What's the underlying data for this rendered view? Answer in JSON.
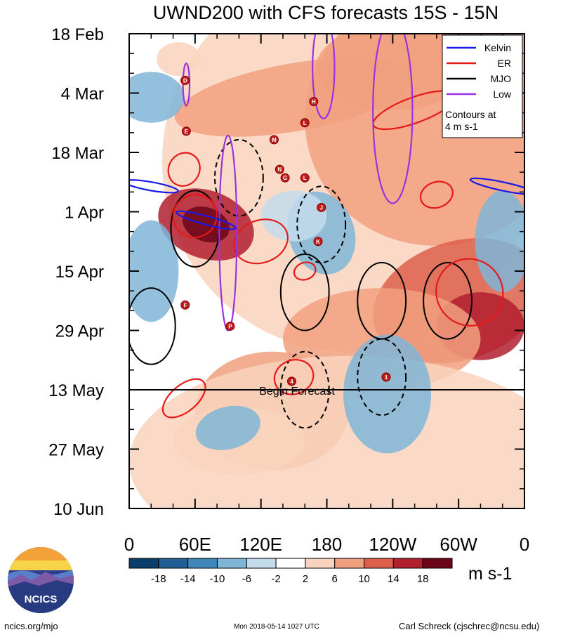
{
  "chart_data": {
    "type": "heatmap",
    "title": "UWND200 with CFS forecasts  15S - 15N",
    "x_ticks": [
      "0",
      "60E",
      "120E",
      "180",
      "120W",
      "60W",
      "0"
    ],
    "x_range_deg_east": [
      0,
      360
    ],
    "y_ticks": [
      "18 Feb",
      "4 Mar",
      "18 Mar",
      "1 Apr",
      "15 Apr",
      "29 Apr",
      "13 May",
      "27 May",
      "10 Jun"
    ],
    "y_range": [
      "2018-02-18",
      "2018-06-10"
    ],
    "forecast_start": "2018-05-13",
    "forecast_label": "Begin Forecast",
    "colorbar": {
      "levels": [
        "-18",
        "-14",
        "-10",
        "-6",
        "-2",
        "2",
        "6",
        "10",
        "14",
        "18"
      ],
      "colors": [
        "#0b3e6b",
        "#1f5f95",
        "#3f86bb",
        "#7fb5d7",
        "#c3dcec",
        "#ffffff",
        "#f9d3bd",
        "#f1a07f",
        "#dc5f4a",
        "#b21f2f",
        "#6b0619"
      ],
      "units": "m s-1"
    },
    "legend": {
      "items": [
        {
          "label": "Kelvin",
          "color": "#1a1ae6"
        },
        {
          "label": "ER",
          "color": "#e61919"
        },
        {
          "label": "MJO",
          "color": "#000000"
        },
        {
          "label": "Low",
          "color": "#9933e0"
        }
      ],
      "note": [
        "Contours at",
        "4 m s-1"
      ],
      "position": "top-right"
    },
    "storm_markers": [
      {
        "label": "D",
        "lon": 51,
        "date": "2018-03-01"
      },
      {
        "label": "E",
        "lon": 52,
        "date": "2018-03-13"
      },
      {
        "label": "H",
        "lon": 168,
        "date": "2018-03-06"
      },
      {
        "label": "M",
        "lon": 132,
        "date": "2018-03-15"
      },
      {
        "label": "L",
        "lon": 160,
        "date": "2018-03-11"
      },
      {
        "label": "N",
        "lon": 137,
        "date": "2018-03-22"
      },
      {
        "label": "G",
        "lon": 142,
        "date": "2018-03-24"
      },
      {
        "label": "L",
        "lon": 160,
        "date": "2018-03-24"
      },
      {
        "label": "J",
        "lon": 175,
        "date": "2018-03-31"
      },
      {
        "label": "K",
        "lon": 172,
        "date": "2018-04-08"
      },
      {
        "label": "F",
        "lon": 51,
        "date": "2018-04-23"
      },
      {
        "label": "P",
        "lon": 92,
        "date": "2018-04-28"
      },
      {
        "label": "4",
        "lon": 148,
        "date": "2018-05-11"
      },
      {
        "label": "1",
        "lon": 234,
        "date": "2018-05-10"
      }
    ],
    "mjo_contours": [
      {
        "lon": 20,
        "date": "2018-04-28",
        "style": "solid"
      },
      {
        "lon": 60,
        "date": "2018-04-05",
        "style": "solid"
      },
      {
        "lon": 160,
        "date": "2018-04-20",
        "style": "solid"
      },
      {
        "lon": 230,
        "date": "2018-04-22",
        "style": "solid"
      },
      {
        "lon": 290,
        "date": "2018-04-22",
        "style": "solid"
      },
      {
        "lon": 100,
        "date": "2018-03-24",
        "style": "dashed"
      },
      {
        "lon": 175,
        "date": "2018-04-04",
        "style": "dashed"
      },
      {
        "lon": 160,
        "date": "2018-05-13",
        "style": "dashed"
      },
      {
        "lon": 230,
        "date": "2018-05-10",
        "style": "dashed"
      }
    ]
  },
  "header": {
    "title": "UWND200 with CFS forecasts  15S - 15N"
  },
  "logo": {
    "text": "NCICS"
  },
  "footer": {
    "left": "ncics.org/mjo",
    "center": "Mon 2018-05-14 1027 UTC",
    "right": "Carl Schreck (cjschrec@ncsu.edu)"
  }
}
